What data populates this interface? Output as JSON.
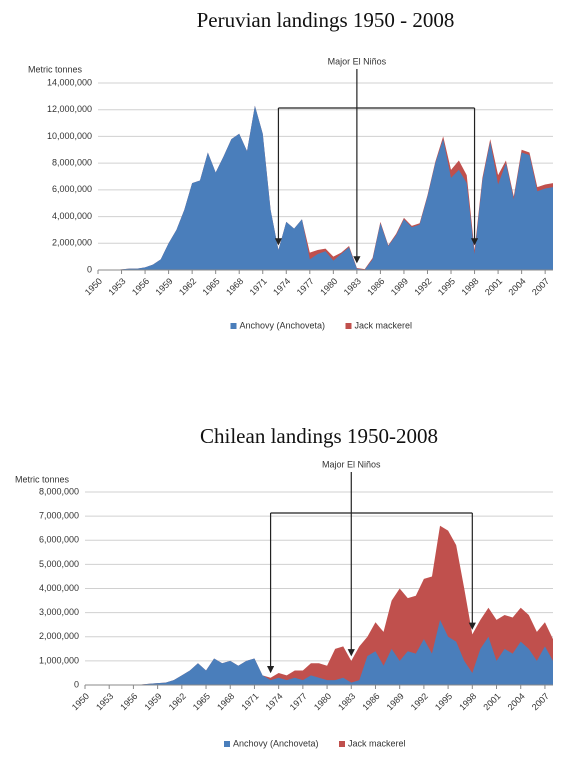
{
  "chart_data": [
    {
      "type": "stacked_area",
      "title": "Peruvian landings 1950 - 2008",
      "y_label": "Metric tonnes",
      "x": [
        1950,
        1951,
        1952,
        1953,
        1954,
        1955,
        1956,
        1957,
        1958,
        1959,
        1960,
        1961,
        1962,
        1963,
        1964,
        1965,
        1966,
        1967,
        1968,
        1969,
        1970,
        1971,
        1972,
        1973,
        1974,
        1975,
        1976,
        1977,
        1978,
        1979,
        1980,
        1981,
        1982,
        1983,
        1984,
        1985,
        1986,
        1987,
        1988,
        1989,
        1990,
        1991,
        1992,
        1993,
        1994,
        1995,
        1996,
        1997,
        1998,
        1999,
        2000,
        2001,
        2002,
        2003,
        2004,
        2005,
        2006,
        2007,
        2008
      ],
      "xlim": [
        1950,
        2008
      ],
      "xticks": [
        1950,
        1953,
        1956,
        1959,
        1962,
        1965,
        1968,
        1971,
        1974,
        1977,
        1980,
        1983,
        1986,
        1989,
        1992,
        1995,
        1998,
        2001,
        2004,
        2007
      ],
      "ylim": [
        0,
        14000000
      ],
      "yticks": [
        0,
        {
          "value": 2000000,
          "label": "2,000,000"
        },
        {
          "value": 4000000,
          "label": "4,000,000"
        },
        {
          "value": 6000000,
          "label": "6,000,000"
        },
        {
          "value": 8000000,
          "label": "8,000,000"
        },
        {
          "value": 10000000,
          "label": "10,000,000"
        },
        {
          "value": 12000000,
          "label": "12,000,000"
        },
        {
          "value": 14000000,
          "label": "14,000,000"
        }
      ],
      "grid": true,
      "series": [
        {
          "name": "Anchovy (Anchoveta)",
          "color": "#4a7ebb",
          "values": [
            0,
            0,
            0,
            50000,
            100000,
            100000,
            200000,
            400000,
            800000,
            2000000,
            3000000,
            4500000,
            6500000,
            6700000,
            8800000,
            7300000,
            8500000,
            9800000,
            10200000,
            8900000,
            12300000,
            10200000,
            4500000,
            1500000,
            3600000,
            3100000,
            3800000,
            800000,
            1200000,
            1400000,
            700000,
            1200000,
            1700000,
            100000,
            20000,
            800000,
            3500000,
            1800000,
            2600000,
            3800000,
            3200000,
            3400000,
            5500000,
            8000000,
            9800000,
            6900000,
            7500000,
            6500000,
            1200000,
            6700000,
            9600000,
            6400000,
            8000000,
            5300000,
            8800000,
            8600000,
            5900000,
            6100000,
            6200000
          ]
        },
        {
          "name": "Jack mackerel",
          "color": "#c0504d",
          "values": [
            0,
            0,
            0,
            0,
            0,
            0,
            0,
            0,
            0,
            0,
            0,
            0,
            0,
            0,
            0,
            0,
            0,
            0,
            0,
            0,
            0,
            0,
            0,
            0,
            0,
            0,
            0,
            500000,
            300000,
            200000,
            300000,
            100000,
            100000,
            50000,
            50000,
            100000,
            100000,
            50000,
            100000,
            100000,
            100000,
            100000,
            100000,
            100000,
            200000,
            600000,
            700000,
            600000,
            300000,
            200000,
            200000,
            700000,
            200000,
            200000,
            200000,
            200000,
            300000,
            300000,
            300000
          ]
        }
      ],
      "legend": "bottom",
      "annotation": {
        "text": "Major El Niños",
        "x": [
          1973,
          1983,
          1998
        ]
      }
    },
    {
      "type": "stacked_area",
      "title": "Chilean landings 1950-2008",
      "y_label": "Metric tonnes",
      "x": [
        1950,
        1951,
        1952,
        1953,
        1954,
        1955,
        1956,
        1957,
        1958,
        1959,
        1960,
        1961,
        1962,
        1963,
        1964,
        1965,
        1966,
        1967,
        1968,
        1969,
        1970,
        1971,
        1972,
        1973,
        1974,
        1975,
        1976,
        1977,
        1978,
        1979,
        1980,
        1981,
        1982,
        1983,
        1984,
        1985,
        1986,
        1987,
        1988,
        1989,
        1990,
        1991,
        1992,
        1993,
        1994,
        1995,
        1996,
        1997,
        1998,
        1999,
        2000,
        2001,
        2002,
        2003,
        2004,
        2005,
        2006,
        2007,
        2008
      ],
      "xlim": [
        1950,
        2008
      ],
      "xticks": [
        1950,
        1953,
        1956,
        1959,
        1962,
        1965,
        1968,
        1971,
        1974,
        1977,
        1980,
        1983,
        1986,
        1989,
        1992,
        1995,
        1998,
        2001,
        2004,
        2007
      ],
      "ylim": [
        0,
        8000000
      ],
      "yticks": [
        0,
        {
          "value": 1000000,
          "label": "1,000,000"
        },
        {
          "value": 2000000,
          "label": "2,000,000"
        },
        {
          "value": 3000000,
          "label": "3,000,000"
        },
        {
          "value": 4000000,
          "label": "4,000,000"
        },
        {
          "value": 5000000,
          "label": "5,000,000"
        },
        {
          "value": 6000000,
          "label": "6,000,000"
        },
        {
          "value": 7000000,
          "label": "7,000,000"
        },
        {
          "value": 8000000,
          "label": "8,000,000"
        }
      ],
      "grid": true,
      "series": [
        {
          "name": "Anchovy (Anchoveta)",
          "color": "#4a7ebb",
          "values": [
            0,
            0,
            0,
            0,
            0,
            0,
            10000,
            20000,
            50000,
            80000,
            100000,
            200000,
            400000,
            600000,
            900000,
            600000,
            1100000,
            900000,
            1000000,
            800000,
            1000000,
            1100000,
            400000,
            200000,
            300000,
            200000,
            300000,
            200000,
            400000,
            300000,
            200000,
            200000,
            300000,
            100000,
            200000,
            1200000,
            1400000,
            800000,
            1500000,
            1000000,
            1400000,
            1300000,
            1900000,
            1300000,
            2700000,
            2000000,
            1800000,
            1000000,
            500000,
            1500000,
            2000000,
            1000000,
            1500000,
            1300000,
            1800000,
            1500000,
            1000000,
            1600000,
            1000000
          ]
        },
        {
          "name": "Jack mackerel",
          "color": "#c0504d",
          "values": [
            0,
            0,
            0,
            0,
            0,
            0,
            0,
            0,
            0,
            0,
            0,
            0,
            0,
            0,
            0,
            0,
            0,
            0,
            0,
            0,
            0,
            0,
            0,
            100000,
            200000,
            200000,
            300000,
            400000,
            500000,
            600000,
            600000,
            1300000,
            1300000,
            900000,
            1400000,
            800000,
            1200000,
            1400000,
            2000000,
            3000000,
            2200000,
            2400000,
            2500000,
            3200000,
            3900000,
            4400000,
            4000000,
            3000000,
            1600000,
            1200000,
            1200000,
            1700000,
            1400000,
            1500000,
            1400000,
            1400000,
            1200000,
            1000000,
            900000
          ]
        }
      ],
      "legend": "bottom",
      "annotation": {
        "text": "Major El Niños",
        "x": [
          1973,
          1983,
          1998
        ]
      }
    }
  ]
}
